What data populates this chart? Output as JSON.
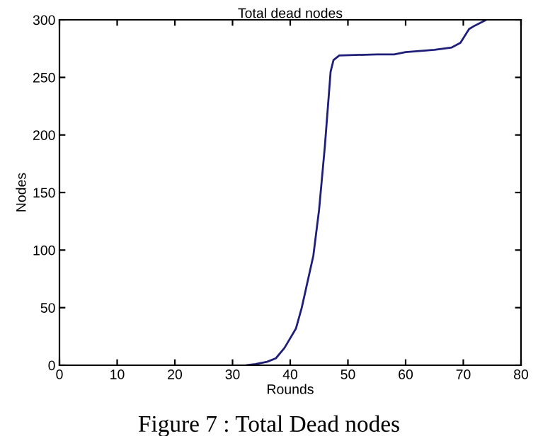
{
  "chart_data": {
    "type": "line",
    "title": "Total dead nodes",
    "xlabel": "Rounds",
    "ylabel": "Nodes",
    "annotations": [
      "Figure 7 : Total Dead nodes"
    ],
    "x": [
      32.5,
      34,
      36,
      37.5,
      39,
      41,
      42,
      44,
      45,
      46,
      47,
      47.5,
      48.5,
      55,
      58,
      60,
      65,
      68,
      69.5,
      71,
      72,
      74
    ],
    "series": [
      {
        "color": "#1f1f7a",
        "values": [
          0,
          1,
          3,
          6,
          15,
          32,
          50,
          95,
          135,
          190,
          255,
          265,
          269,
          270,
          270,
          272,
          274,
          276,
          280,
          292,
          295,
          300
        ]
      }
    ],
    "xlim": [
      0,
      80
    ],
    "ylim": [
      0,
      300
    ],
    "xticks": [
      0,
      10,
      20,
      30,
      40,
      50,
      60,
      70,
      80
    ],
    "yticks": [
      0,
      50,
      100,
      150,
      200,
      250,
      300
    ],
    "grid": false
  }
}
